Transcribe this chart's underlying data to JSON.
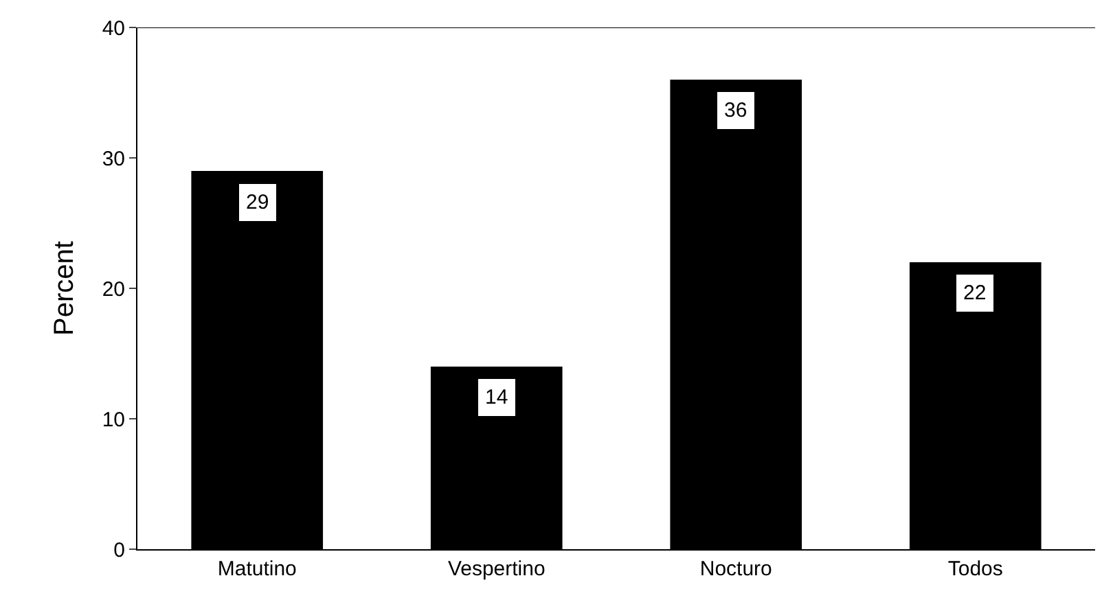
{
  "chart_data": {
    "type": "bar",
    "ylabel": "Percent",
    "categories": [
      "Matutino",
      "Vespertino",
      "Nocturo",
      "Todos"
    ],
    "values": [
      29,
      14,
      36,
      22
    ],
    "color": "#000000",
    "ylim": [
      0,
      40
    ],
    "yticks": [
      0,
      10,
      20,
      30,
      40
    ],
    "legend": false,
    "data_labels": true
  }
}
